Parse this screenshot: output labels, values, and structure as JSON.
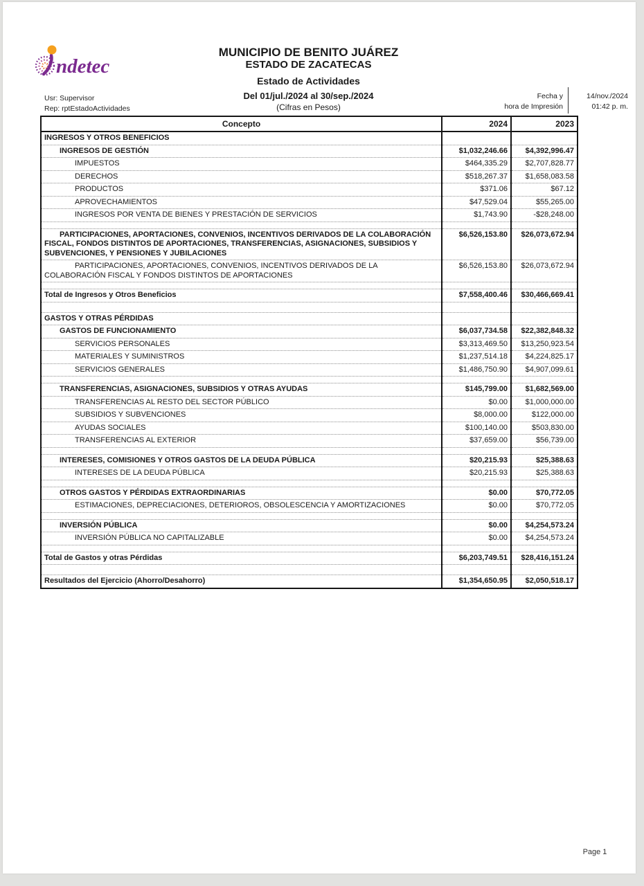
{
  "logo": {
    "text": "ndetec",
    "purple": "#7b2a8f",
    "orange": "#f5a01e"
  },
  "header": {
    "title": "MUNICIPIO DE BENITO JUÁREZ",
    "subtitle": "ESTADO DE ZACATECAS",
    "report_name": "Estado de Actividades",
    "period": "Del 01/jul./2024 al 30/sep./2024",
    "units": "(Cifras en Pesos)",
    "user_line": "Usr: Supervisor",
    "report_line": "Rep: rptEstadoActividades",
    "print_label_line1": "Fecha y",
    "print_label_line2": "hora de Impresión",
    "print_date": "14/nov./2024",
    "print_time": "01:42 p. m."
  },
  "footer": {
    "page_number": "Page 1"
  },
  "table": {
    "columns": [
      "Concepto",
      "2024",
      "2023"
    ],
    "rows": [
      {
        "concept": "INGRESOS Y OTROS BENEFICIOS",
        "v2024": "",
        "v2023": "",
        "level": 0,
        "bold": true
      },
      {
        "concept": "INGRESOS DE GESTIÓN",
        "v2024": "$1,032,246.66",
        "v2023": "$4,392,996.47",
        "level": 1,
        "bold": true
      },
      {
        "concept": "IMPUESTOS",
        "v2024": "$464,335.29",
        "v2023": "$2,707,828.77",
        "level": 2,
        "bold": false
      },
      {
        "concept": "DERECHOS",
        "v2024": "$518,267.37",
        "v2023": "$1,658,083.58",
        "level": 2,
        "bold": false
      },
      {
        "concept": "PRODUCTOS",
        "v2024": "$371.06",
        "v2023": "$67.12",
        "level": 2,
        "bold": false
      },
      {
        "concept": "APROVECHAMIENTOS",
        "v2024": "$47,529.04",
        "v2023": "$55,265.00",
        "level": 2,
        "bold": false
      },
      {
        "concept": "INGRESOS POR VENTA DE BIENES Y PRESTACIÓN DE SERVICIOS",
        "v2024": "$1,743.90",
        "v2023": "-$28,248.00",
        "level": 2,
        "bold": false
      },
      {
        "spacer": true
      },
      {
        "concept": "PARTICIPACIONES, APORTACIONES, CONVENIOS, INCENTIVOS DERIVADOS DE LA COLABORACIÓN FISCAL, FONDOS DISTINTOS DE APORTACIONES, TRANSFERENCIAS, ASIGNACIONES, SUBSIDIOS Y SUBVENCIONES, Y PENSIONES Y JUBILACIONES",
        "v2024": "$6,526,153.80",
        "v2023": "$26,073,672.94",
        "level": 1,
        "bold": true
      },
      {
        "concept": "PARTICIPACIONES, APORTACIONES, CONVENIOS, INCENTIVOS DERIVADOS DE LA COLABORACIÓN FISCAL Y FONDOS DISTINTOS DE APORTACIONES",
        "v2024": "$6,526,153.80",
        "v2023": "$26,073,672.94",
        "level": 2,
        "bold": false
      },
      {
        "spacer": true
      },
      {
        "concept": "Total de Ingresos y Otros Beneficios",
        "v2024": "$7,558,400.46",
        "v2023": "$30,466,669.41",
        "level": 0,
        "bold": true
      },
      {
        "spacer": true,
        "tall": true
      },
      {
        "concept": "GASTOS Y OTRAS PÉRDIDAS",
        "v2024": "",
        "v2023": "",
        "level": 0,
        "bold": true
      },
      {
        "concept": "GASTOS DE FUNCIONAMIENTO",
        "v2024": "$6,037,734.58",
        "v2023": "$22,382,848.32",
        "level": 1,
        "bold": true
      },
      {
        "concept": "SERVICIOS PERSONALES",
        "v2024": "$3,313,469.50",
        "v2023": "$13,250,923.54",
        "level": 2,
        "bold": false
      },
      {
        "concept": "MATERIALES Y SUMINISTROS",
        "v2024": "$1,237,514.18",
        "v2023": "$4,224,825.17",
        "level": 2,
        "bold": false
      },
      {
        "concept": "SERVICIOS GENERALES",
        "v2024": "$1,486,750.90",
        "v2023": "$4,907,099.61",
        "level": 2,
        "bold": false
      },
      {
        "spacer": true
      },
      {
        "concept": "TRANSFERENCIAS, ASIGNACIONES, SUBSIDIOS Y OTRAS AYUDAS",
        "v2024": "$145,799.00",
        "v2023": "$1,682,569.00",
        "level": 1,
        "bold": true
      },
      {
        "concept": "TRANSFERENCIAS AL RESTO DEL SECTOR PÚBLICO",
        "v2024": "$0.00",
        "v2023": "$1,000,000.00",
        "level": 2,
        "bold": false
      },
      {
        "concept": "SUBSIDIOS Y SUBVENCIONES",
        "v2024": "$8,000.00",
        "v2023": "$122,000.00",
        "level": 2,
        "bold": false
      },
      {
        "concept": "AYUDAS SOCIALES",
        "v2024": "$100,140.00",
        "v2023": "$503,830.00",
        "level": 2,
        "bold": false
      },
      {
        "concept": "TRANSFERENCIAS AL EXTERIOR",
        "v2024": "$37,659.00",
        "v2023": "$56,739.00",
        "level": 2,
        "bold": false
      },
      {
        "spacer": true
      },
      {
        "concept": "INTERESES, COMISIONES Y OTROS GASTOS DE LA DEUDA PÚBLICA",
        "v2024": "$20,215.93",
        "v2023": "$25,388.63",
        "level": 1,
        "bold": true
      },
      {
        "concept": "INTERESES DE LA DEUDA PÚBLICA",
        "v2024": "$20,215.93",
        "v2023": "$25,388.63",
        "level": 2,
        "bold": false
      },
      {
        "spacer": true
      },
      {
        "concept": "OTROS GASTOS Y PÉRDIDAS EXTRAORDINARIAS",
        "v2024": "$0.00",
        "v2023": "$70,772.05",
        "level": 1,
        "bold": true
      },
      {
        "concept": "ESTIMACIONES, DEPRECIACIONES, DETERIOROS, OBSOLESCENCIA Y AMORTIZACIONES",
        "v2024": "$0.00",
        "v2023": "$70,772.05",
        "level": 2,
        "bold": false
      },
      {
        "spacer": true
      },
      {
        "concept": "INVERSIÓN PÚBLICA",
        "v2024": "$0.00",
        "v2023": "$4,254,573.24",
        "level": 1,
        "bold": true
      },
      {
        "concept": "INVERSIÓN PÚBLICA NO CAPITALIZABLE",
        "v2024": "$0.00",
        "v2023": "$4,254,573.24",
        "level": 2,
        "bold": false
      },
      {
        "spacer": true
      },
      {
        "concept": "Total de Gastos y otras Pérdidas",
        "v2024": "$6,203,749.51",
        "v2023": "$28,416,151.24",
        "level": 0,
        "bold": true
      },
      {
        "spacer": true,
        "tall": true
      },
      {
        "concept": "Resultados del Ejercicio (Ahorro/Desahorro)",
        "v2024": "$1,354,650.95",
        "v2023": "$2,050,518.17",
        "level": 0,
        "bold": true
      }
    ]
  }
}
